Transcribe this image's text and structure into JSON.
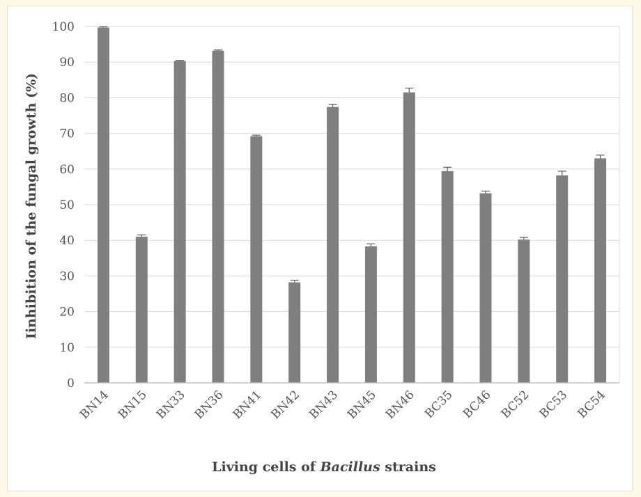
{
  "chart_data": {
    "type": "bar",
    "title": "",
    "ylabel": "Iinhibition of the fungal  growth (%)",
    "xlabel": {
      "prefix": "Living cells of ",
      "italic": "Bacillus",
      "suffix": " strains"
    },
    "ylim": [
      0,
      100
    ],
    "yticks": [
      "0",
      "10",
      "20",
      "30",
      "40",
      "50",
      "60",
      "70",
      "80",
      "90",
      "100"
    ],
    "categories": [
      "BN14",
      "BN15",
      "BN33",
      "BN36",
      "BN41",
      "BN42",
      "BN43",
      "BN45",
      "BN46",
      "BC35",
      "BC46",
      "BC52",
      "BC53",
      "BC54"
    ],
    "values": [
      99.7,
      41.0,
      90.3,
      93.2,
      69.2,
      28.2,
      77.4,
      38.3,
      81.5,
      59.4,
      53.2,
      40.2,
      58.2,
      63.0
    ],
    "errors": [
      0.2,
      0.5,
      0.2,
      0.2,
      0.3,
      0.6,
      0.7,
      0.7,
      1.2,
      1.1,
      0.6,
      0.6,
      1.2,
      0.9
    ],
    "grid": true,
    "legend": "none",
    "colors": {
      "bar": "#7f7f7f",
      "grid": "#d9d9d9",
      "axis": "#bfbfbf",
      "error": "#595959"
    }
  }
}
